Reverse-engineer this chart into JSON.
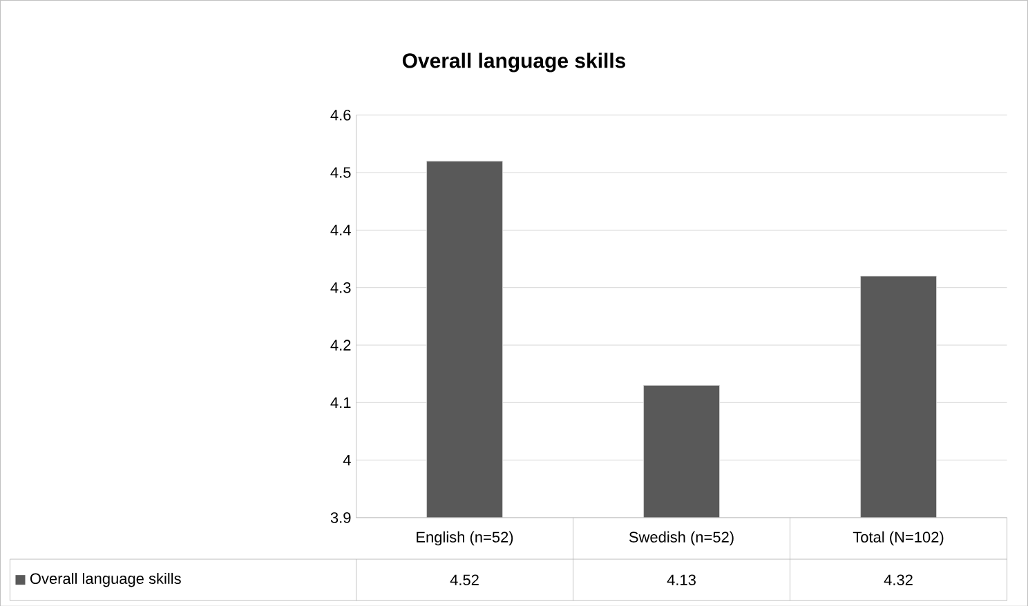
{
  "chart_data": {
    "type": "bar",
    "title": "Overall language skills",
    "categories": [
      "English (n=52)",
      "Swedish (n=52)",
      "Total (N=102)"
    ],
    "series": [
      {
        "name": "Overall language skills",
        "color": "#595959",
        "values": [
          4.52,
          4.13,
          4.32
        ]
      }
    ],
    "ylim": [
      3.9,
      4.6
    ],
    "yticks": [
      3.9,
      4,
      4.1,
      4.2,
      4.3,
      4.4,
      4.5,
      4.6
    ],
    "grid": "y",
    "data_labels": true,
    "legend": "bottom"
  }
}
